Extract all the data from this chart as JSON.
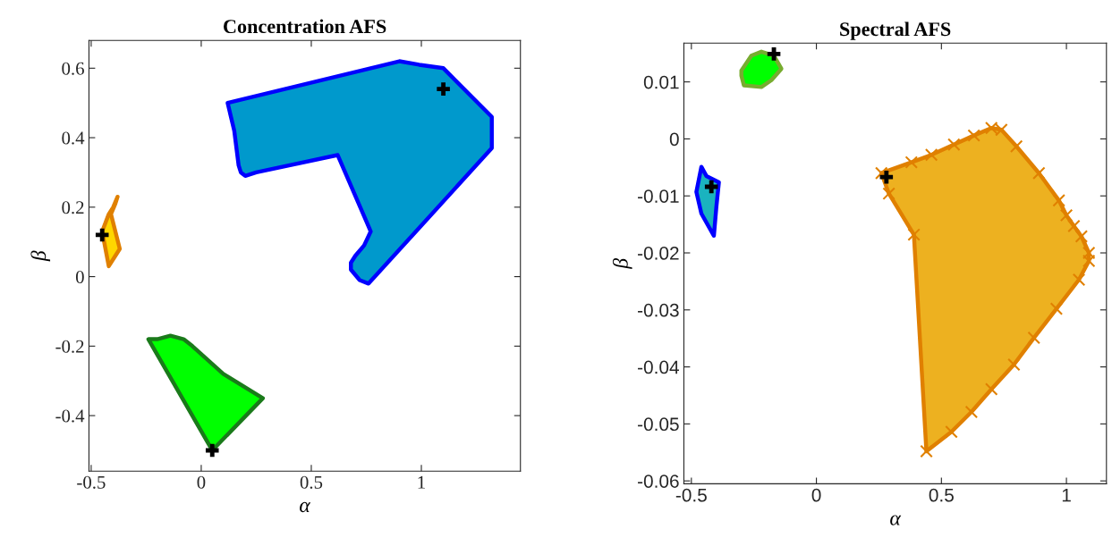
{
  "chart_data": [
    {
      "type": "area",
      "title": "Concentration AFS",
      "xlabel": "α",
      "ylabel": "β",
      "xlim": [
        -0.51,
        1.45
      ],
      "ylim": [
        -0.56,
        0.68
      ],
      "xticks": [
        -0.5,
        0,
        0.5,
        1
      ],
      "yticks": [
        -0.4,
        -0.2,
        0,
        0.2,
        0.4,
        0.6
      ],
      "grid": false,
      "legend": false,
      "series": [
        {
          "color": "#0099cc",
          "colors": [
            "#0000ff",
            "#0000ff",
            "#0000ff",
            "#0000ff",
            "#0000ff",
            "#0000ff",
            "#0000ff",
            "#0000ff",
            "#0000ff",
            "#0000ff",
            "#0000ff",
            "#0000ff",
            "#0000ff",
            "#0000ff",
            "#0000ff",
            "#0000ff",
            "#0000ff",
            "#0000ff",
            "#0000ff"
          ],
          "x": [
            0.12,
            0.9,
            0.99,
            1.1,
            1.32,
            1.32,
            0.76,
            0.72,
            0.68,
            0.68,
            0.7,
            0.74,
            0.77,
            0.62,
            0.25,
            0.2,
            0.18,
            0.17,
            0.15
          ],
          "values": [
            0.5,
            0.62,
            0.61,
            0.6,
            0.46,
            0.37,
            -0.02,
            -0.01,
            0.02,
            0.04,
            0.06,
            0.09,
            0.13,
            0.35,
            0.3,
            0.29,
            0.3,
            0.32,
            0.42
          ]
        },
        {
          "color": "#ffd700",
          "colors": [
            "#e08000",
            "#e08000",
            "#e08000",
            "#e08000",
            "#e08000",
            "#e08000",
            "#e08000",
            "#e08000",
            "#e08000"
          ],
          "x": [
            -0.38,
            -0.4,
            -0.42,
            -0.45,
            -0.42,
            -0.39,
            -0.37,
            -0.41,
            -0.39
          ],
          "values": [
            0.23,
            0.2,
            0.18,
            0.13,
            0.03,
            0.06,
            0.08,
            0.18,
            0.21
          ]
        },
        {
          "color": "#00ff00",
          "colors": [
            "#1a7a1a",
            "#1a7a1a",
            "#1a7a1a",
            "#1a7a1a",
            "#1a7a1a",
            "#1a7a1a",
            "#1a7a1a",
            "#1a7a1a"
          ],
          "x": [
            -0.24,
            -0.2,
            -0.14,
            -0.08,
            -0.04,
            0.1,
            0.28,
            0.05
          ],
          "values": [
            -0.18,
            -0.18,
            -0.17,
            -0.18,
            -0.2,
            -0.28,
            -0.35,
            -0.5
          ]
        },
        {
          "type": "scatter",
          "color": "#000000",
          "marker": "cross",
          "x": [
            1.1,
            -0.45,
            0.05
          ],
          "values": [
            0.54,
            0.12,
            -0.5
          ]
        }
      ]
    },
    {
      "type": "area",
      "title": "Spectral AFS",
      "xlabel": "α",
      "ylabel": "β",
      "xlim": [
        -0.53,
        1.16
      ],
      "ylim": [
        -0.0605,
        0.0168
      ],
      "xticks": [
        -0.5,
        0,
        0.5,
        1
      ],
      "yticks": [
        -0.06,
        -0.05,
        -0.04,
        -0.03,
        -0.02,
        -0.01,
        0,
        0.01
      ],
      "grid": false,
      "legend": false,
      "series": [
        {
          "color": "#00ff00",
          "colors": [
            "#77ac30",
            "#77ac30",
            "#77ac30",
            "#77ac30",
            "#77ac30",
            "#77ac30",
            "#77ac30",
            "#77ac30",
            "#77ac30"
          ],
          "x": [
            -0.3,
            -0.26,
            -0.22,
            -0.17,
            -0.14,
            -0.18,
            -0.22,
            -0.29,
            -0.3
          ],
          "values": [
            0.012,
            0.0146,
            0.0153,
            0.0146,
            0.0123,
            0.0103,
            0.0091,
            0.0094,
            0.0111
          ]
        },
        {
          "color": "#1ab3bf",
          "colors": [
            "#0000ff",
            "#0000ff",
            "#0000ff",
            "#0000ff",
            "#0000ff",
            "#0000ff",
            "#0000ff"
          ],
          "x": [
            -0.46,
            -0.44,
            -0.39,
            -0.4,
            -0.41,
            -0.46,
            -0.48
          ],
          "values": [
            -0.0049,
            -0.0065,
            -0.0076,
            -0.0119,
            -0.017,
            -0.0131,
            -0.0093
          ]
        },
        {
          "color": "#edb120",
          "colors": [
            "#e08000",
            "#e08000",
            "#e08000",
            "#e08000",
            "#e08000",
            "#e08000",
            "#e08000",
            "#e08000",
            "#e08000",
            "#e08000",
            "#e08000",
            "#e08000",
            "#e08000",
            "#e08000",
            "#e08000",
            "#e08000",
            "#e08000",
            "#e08000",
            "#e08000",
            "#e08000",
            "#e08000",
            "#e08000",
            "#e08000",
            "#e08000",
            "#e08000"
          ],
          "marker": "cross",
          "x": [
            0.26,
            0.38,
            0.46,
            0.55,
            0.63,
            0.7,
            0.74,
            0.8,
            0.89,
            0.97,
            1.0,
            1.03,
            1.06,
            1.09,
            1.09,
            1.05,
            0.96,
            0.87,
            0.79,
            0.7,
            0.62,
            0.54,
            0.44,
            0.39,
            0.29
          ],
          "values": [
            -0.006,
            -0.0041,
            -0.0028,
            -0.001,
            0.0006,
            0.0019,
            0.0016,
            -0.0013,
            -0.006,
            -0.0108,
            -0.0134,
            -0.0153,
            -0.0171,
            -0.02,
            -0.0214,
            -0.0247,
            -0.0298,
            -0.0349,
            -0.0396,
            -0.0439,
            -0.0479,
            -0.0514,
            -0.0548,
            -0.0168,
            -0.0096
          ]
        },
        {
          "type": "scatter",
          "color": "#000000",
          "marker": "cross",
          "x": [
            -0.17,
            -0.42,
            0.28
          ],
          "values": [
            0.0149,
            -0.0084,
            -0.0067
          ]
        }
      ]
    }
  ]
}
